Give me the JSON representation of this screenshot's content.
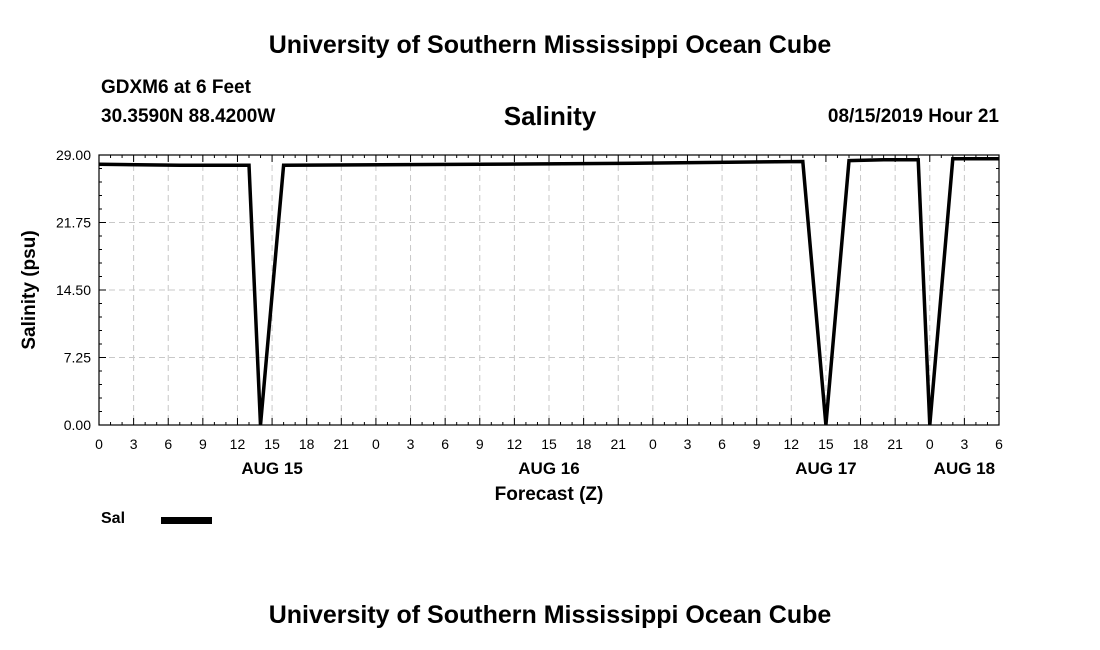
{
  "header": {
    "top_title": "University of Southern Mississippi Ocean Cube",
    "station": "GDXM6 at 6 Feet",
    "coords": "30.3590N 88.4200W",
    "issue_time": "08/15/2019 Hour 21",
    "bottom_title": "University of Southern Mississippi Ocean Cube"
  },
  "legend": {
    "label": "Sal",
    "color": "#000000"
  },
  "chart_data": {
    "type": "line",
    "title": "Salinity",
    "xlabel": "Forecast (Z)",
    "ylabel": "Salinity (psu)",
    "ylim": [
      0,
      29
    ],
    "yticks": [
      "0.00",
      "7.25",
      "14.50",
      "21.75",
      "29.00"
    ],
    "xlim": [
      "2019-08-15T00Z",
      "2019-08-18T06Z"
    ],
    "xtick_labels": [
      "0",
      "3",
      "6",
      "9",
      "12",
      "15",
      "18",
      "21",
      "0",
      "3",
      "6",
      "9",
      "12",
      "15",
      "18",
      "21",
      "0",
      "3",
      "6",
      "9",
      "12",
      "15",
      "18",
      "21",
      "0",
      "3",
      "6"
    ],
    "date_labels": [
      {
        "label": "AUG 15",
        "at": "2019-08-15T15Z"
      },
      {
        "label": "AUG 16",
        "at": "2019-08-16T15Z"
      },
      {
        "label": "AUG 17",
        "at": "2019-08-17T15Z"
      },
      {
        "label": "AUG 18",
        "at": "2019-08-18T03Z"
      }
    ],
    "grid": true,
    "legend_position": "bottom-left",
    "series": [
      {
        "name": "Sal",
        "color": "#000000",
        "points": [
          [
            "2019-08-15T00Z",
            28.0
          ],
          [
            "2019-08-15T07Z",
            27.9
          ],
          [
            "2019-08-15T13Z",
            27.9
          ],
          [
            "2019-08-15T14Z",
            0.0
          ],
          [
            "2019-08-15T16Z",
            27.9
          ],
          [
            "2019-08-16T09Z",
            28.0
          ],
          [
            "2019-08-16T21Z",
            28.1
          ],
          [
            "2019-08-17T13Z",
            28.3
          ],
          [
            "2019-08-17T15Z",
            0.0
          ],
          [
            "2019-08-17T17Z",
            28.4
          ],
          [
            "2019-08-17T20Z",
            28.5
          ],
          [
            "2019-08-17T23Z",
            28.5
          ],
          [
            "2019-08-18T00Z",
            0.0
          ],
          [
            "2019-08-18T02Z",
            28.6
          ],
          [
            "2019-08-18T06Z",
            28.6
          ]
        ]
      }
    ]
  }
}
